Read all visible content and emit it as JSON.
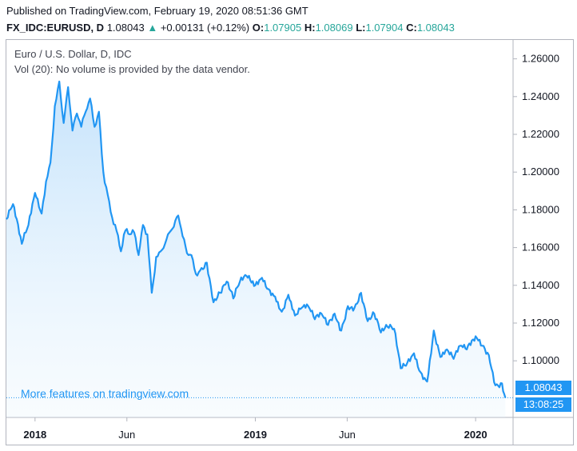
{
  "header": {
    "published": "Published on TradingView.com, February 19, 2020 08:51:36 GMT",
    "symbol": "FX_IDC:EURUSD, D",
    "last": "1.08043",
    "arrow": "▲",
    "change": "+0.00131 (+0.12%)",
    "o_label": "O:",
    "o_value": "1.07905",
    "h_label": "H:",
    "h_value": "1.08069",
    "l_label": "L:",
    "l_value": "1.07904",
    "c_label": "C:",
    "c_value": "1.08043"
  },
  "legend": {
    "title": "Euro / U.S. Dollar, D, IDC",
    "volume": "Vol (20): No volume is provided by the data vendor."
  },
  "watermark": "More features on tradingview.com",
  "price_tag": "1.08043",
  "time_tag": "13:08:25",
  "colors": {
    "line": "#2196f3",
    "up": "#26a69a",
    "fill_top": "#bbdefb",
    "border": "#b2b5be"
  },
  "chart_data": {
    "type": "area",
    "title": "Euro / U.S. Dollar, D, IDC",
    "ylim": [
      1.07,
      1.27
    ],
    "xlim": [
      2017.87,
      2020.17
    ],
    "y_ticks": [
      1.26,
      1.24,
      1.22,
      1.2,
      1.18,
      1.16,
      1.14,
      1.12,
      1.1
    ],
    "y_tick_labels": [
      "1.26000",
      "1.24000",
      "1.22000",
      "1.20000",
      "1.18000",
      "1.16000",
      "1.14000",
      "1.12000",
      "1.10000"
    ],
    "x_ticks": [
      2018.0,
      2018.417,
      2019.0,
      2019.417,
      2020.0
    ],
    "x_tick_labels": [
      "2018",
      "Jun",
      "2019",
      "Jun",
      "2020"
    ],
    "last_value": 1.08043,
    "x": [
      2017.87,
      2017.9,
      2017.94,
      2017.97,
      2018.0,
      2018.03,
      2018.05,
      2018.07,
      2018.09,
      2018.11,
      2018.13,
      2018.15,
      2018.17,
      2018.19,
      2018.21,
      2018.23,
      2018.25,
      2018.27,
      2018.29,
      2018.31,
      2018.33,
      2018.35,
      2018.37,
      2018.39,
      2018.41,
      2018.43,
      2018.45,
      2018.47,
      2018.49,
      2018.51,
      2018.53,
      2018.55,
      2018.57,
      2018.59,
      2018.61,
      2018.63,
      2018.65,
      2018.67,
      2018.69,
      2018.71,
      2018.73,
      2018.75,
      2018.78,
      2018.81,
      2018.84,
      2018.87,
      2018.9,
      2018.93,
      2018.96,
      2019.0,
      2019.03,
      2019.06,
      2019.09,
      2019.12,
      2019.15,
      2019.18,
      2019.21,
      2019.24,
      2019.27,
      2019.3,
      2019.33,
      2019.36,
      2019.39,
      2019.42,
      2019.45,
      2019.48,
      2019.51,
      2019.54,
      2019.57,
      2019.6,
      2019.63,
      2019.66,
      2019.69,
      2019.72,
      2019.75,
      2019.78,
      2019.81,
      2019.84,
      2019.87,
      2019.9,
      2019.93,
      2019.96,
      2020.0,
      2020.03,
      2020.06,
      2020.09,
      2020.12,
      2020.135
    ],
    "values": [
      1.175,
      1.183,
      1.162,
      1.172,
      1.189,
      1.178,
      1.195,
      1.205,
      1.235,
      1.248,
      1.226,
      1.245,
      1.222,
      1.231,
      1.224,
      1.232,
      1.239,
      1.224,
      1.232,
      1.2,
      1.188,
      1.176,
      1.169,
      1.158,
      1.169,
      1.167,
      1.168,
      1.156,
      1.172,
      1.167,
      1.136,
      1.155,
      1.158,
      1.162,
      1.168,
      1.171,
      1.177,
      1.166,
      1.157,
      1.156,
      1.146,
      1.148,
      1.152,
      1.131,
      1.136,
      1.142,
      1.133,
      1.142,
      1.145,
      1.14,
      1.144,
      1.138,
      1.134,
      1.126,
      1.135,
      1.124,
      1.128,
      1.129,
      1.122,
      1.125,
      1.119,
      1.125,
      1.116,
      1.129,
      1.128,
      1.136,
      1.121,
      1.125,
      1.115,
      1.118,
      1.117,
      1.096,
      1.099,
      1.104,
      1.094,
      1.089,
      1.116,
      1.102,
      1.106,
      1.101,
      1.108,
      1.106,
      1.113,
      1.108,
      1.103,
      1.087,
      1.088,
      1.0804
    ]
  }
}
